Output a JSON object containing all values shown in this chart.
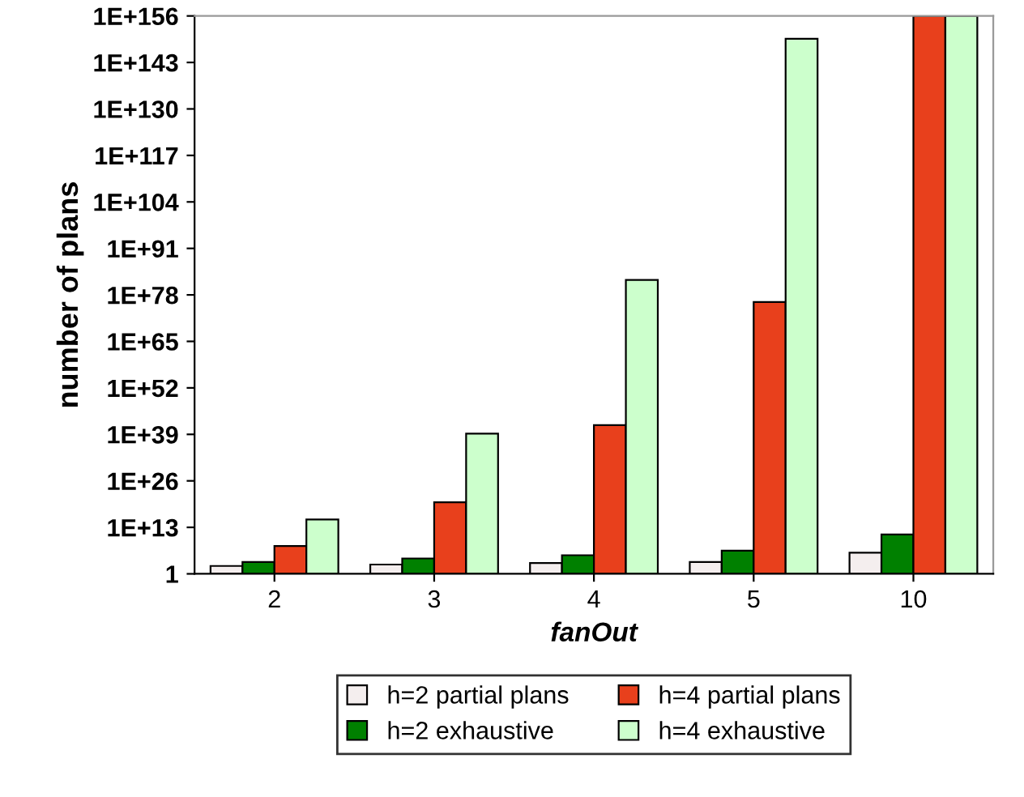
{
  "chart_data": {
    "type": "bar",
    "xlabel": "fanOut",
    "ylabel": "number of plans",
    "categories": [
      "2",
      "3",
      "4",
      "5",
      "10"
    ],
    "series": [
      {
        "name": "h=2 partial plans",
        "color": "#f4eeee",
        "values": [
          160.0,
          400.0,
          1000.0,
          2000.0,
          800000.0
        ]
      },
      {
        "name": "h=2 exhaustive",
        "color": "#008000",
        "values": [
          2000.0,
          20000.0,
          160000.0,
          3000000.0,
          100000000000.0
        ]
      },
      {
        "name": "h=4 partial plans",
        "color": "#e8401c",
        "values": [
          60000000.0,
          1e+20,
          4e+41,
          1e+76,
          1e+156
        ]
      },
      {
        "name": "h=4 exhaustive",
        "color": "#ccffcc",
        "values": [
          1600000000000000.0,
          1.6e+39,
          1.6e+82,
          4e+149,
          1e+156
        ]
      }
    ],
    "log": "y",
    "ylim": [
      1,
      1e+156
    ],
    "yticks": [
      1,
      {
        "value": 10000000000000.0,
        "label": "1E+13"
      },
      {
        "value": 1e+26,
        "label": "1E+26"
      },
      {
        "value": 1e+39,
        "label": "1E+39"
      },
      {
        "value": 1e+52,
        "label": "1E+52"
      },
      {
        "value": 1e+65,
        "label": "1E+65"
      },
      {
        "value": 1e+78,
        "label": "1E+78"
      },
      {
        "value": 1e+91,
        "label": "1E+91"
      },
      {
        "value": 1e+104,
        "label": "1E+104"
      },
      {
        "value": 1e+117,
        "label": "1E+117"
      },
      {
        "value": 1e+130,
        "label": "1E+130"
      },
      {
        "value": 1e+143,
        "label": "1E+143"
      },
      {
        "value": 1e+156,
        "label": "1E+156"
      }
    ],
    "grid": false,
    "legend": "bottom"
  }
}
